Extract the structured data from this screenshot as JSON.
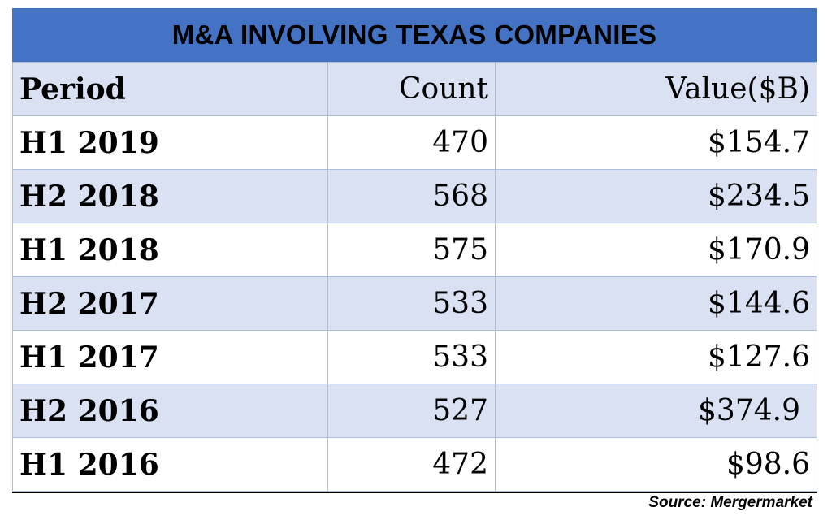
{
  "chart_data": {
    "type": "table",
    "title": "M&A INVOLVING TEXAS COMPANIES",
    "columns": [
      "Period",
      "Count",
      "Value($B)"
    ],
    "rows": [
      {
        "period": "H1 2019",
        "count": "470",
        "value": "$154.7"
      },
      {
        "period": "H2 2018",
        "count": "568",
        "value": "$234.5"
      },
      {
        "period": "H1 2018",
        "count": "575",
        "value": "$170.9"
      },
      {
        "period": "H2 2017",
        "count": "533",
        "value": "$144.6"
      },
      {
        "period": "H1 2017",
        "count": "533",
        "value": "$127.6"
      },
      {
        "period": "H2 2016",
        "count": "527",
        "value": "$374.9"
      },
      {
        "period": "H1 2016",
        "count": "472",
        "value": "$98.6"
      }
    ],
    "source": "Source: Mergermarket"
  },
  "colors": {
    "title_bg": "#4472c4",
    "row_shade": "#d9e1f2",
    "row_plain": "#ffffff",
    "grid": "#a9bde0"
  }
}
